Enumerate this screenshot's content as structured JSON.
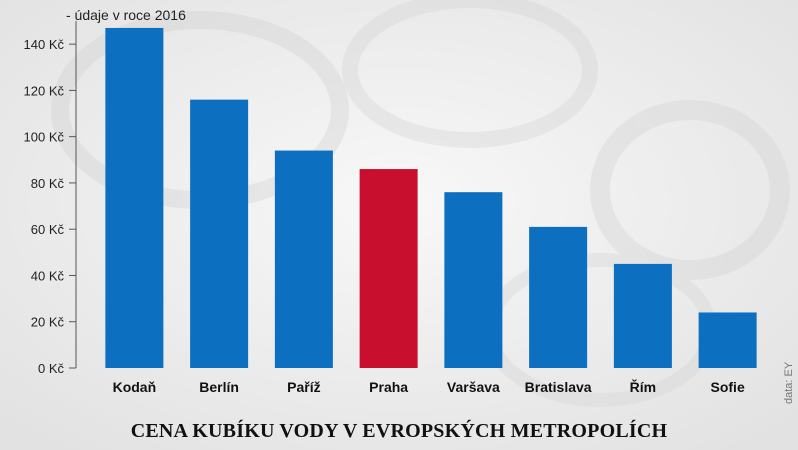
{
  "chart_data": {
    "type": "bar",
    "title": "CENA KUBÍKU VODY V EVROPSKÝCH METROPOLÍCH",
    "subtitle": "- údaje v roce 2016",
    "source": "data: EY",
    "y_unit": "Kč",
    "ylim": [
      0,
      150
    ],
    "yticks": [
      "0 Kč",
      "20 Kč",
      "40 Kč",
      "60 Kč",
      "80 Kč",
      "100 Kč",
      "120 Kč",
      "140 Kč"
    ],
    "ytick_values": [
      0,
      20,
      40,
      60,
      80,
      100,
      120,
      140
    ],
    "categories": [
      "Kodaň",
      "Berlín",
      "Paříž",
      "Praha",
      "Varšava",
      "Bratislava",
      "Řím",
      "Sofie"
    ],
    "values": [
      147,
      116,
      94,
      86,
      76,
      61,
      45,
      24
    ],
    "grid": false,
    "legend": "none",
    "colors": {
      "default_bar": "#0c6fbf",
      "highlight_bar": "#c8102e",
      "highlight_category": "Praha"
    }
  }
}
